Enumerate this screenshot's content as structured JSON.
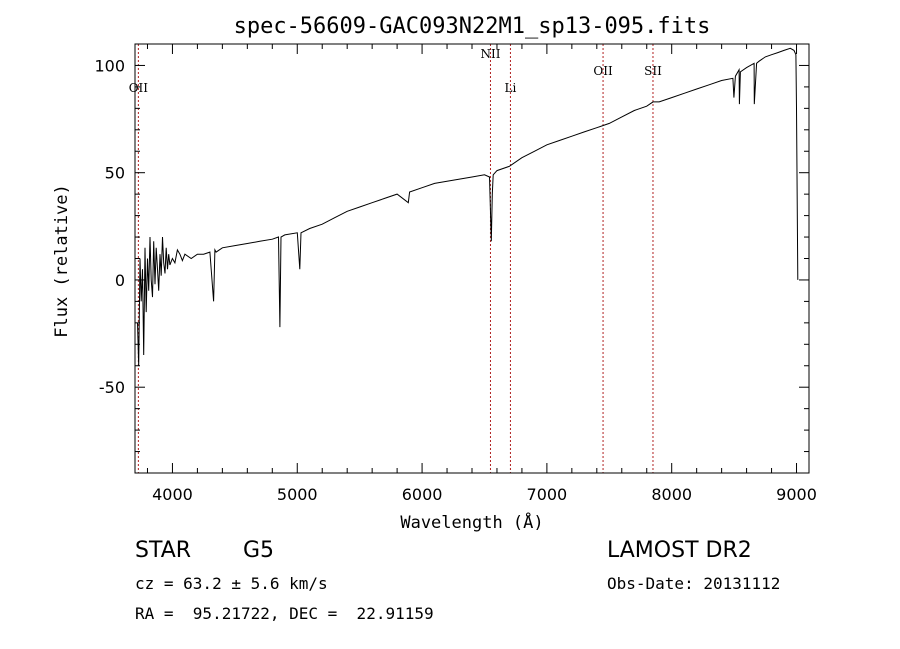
{
  "chart_data": {
    "type": "line",
    "title": "spec-56609-GAC093N22M1_sp13-095.fits",
    "xlabel": "Wavelength (Å)",
    "ylabel": "Flux (relative)",
    "xlim": [
      3700,
      9100
    ],
    "ylim": [
      -90,
      110
    ],
    "xticks": [
      4000,
      5000,
      6000,
      7000,
      8000,
      9000
    ],
    "yticks": [
      -50,
      0,
      50,
      100
    ],
    "grid": false,
    "line_color": "#000000",
    "marker_color": "#b22222",
    "line_markers": [
      {
        "label": "OII",
        "x": 3727
      },
      {
        "label": "NII",
        "x": 6548
      },
      {
        "label": "Li",
        "x": 6708
      },
      {
        "label": "OII",
        "x": 7450
      },
      {
        "label": "SII",
        "x": 7850
      }
    ],
    "series": [
      {
        "x": [
          3720,
          3730,
          3740,
          3750,
          3760,
          3770,
          3780,
          3790,
          3800,
          3810,
          3820,
          3830,
          3840,
          3850,
          3860,
          3870,
          3880,
          3890,
          3900,
          3910,
          3920,
          3930,
          3940,
          3950,
          3960,
          3970,
          3980,
          4000,
          4020,
          4040,
          4060,
          4080,
          4100,
          4150,
          4200,
          4250,
          4300,
          4330,
          4340,
          4350,
          4400,
          4500,
          4600,
          4700,
          4800,
          4850,
          4861,
          4870,
          4900,
          5000,
          5020,
          5030,
          5100,
          5200,
          5300,
          5400,
          5500,
          5600,
          5700,
          5800,
          5890,
          5900,
          6000,
          6100,
          6200,
          6300,
          6400,
          6500,
          6540,
          6555,
          6563,
          6570,
          6600,
          6700,
          6800,
          6900,
          7000,
          7100,
          7200,
          7300,
          7400,
          7500,
          7600,
          7700,
          7800,
          7850,
          7900,
          8000,
          8100,
          8200,
          8300,
          8400,
          8490,
          8498,
          8510,
          8540,
          8542,
          8550,
          8600,
          8660,
          8662,
          8680,
          8700,
          8750,
          8800,
          8850,
          8900,
          8950,
          8980,
          8995,
          9000,
          9010
        ],
        "y": [
          -20,
          -40,
          10,
          -10,
          5,
          -35,
          15,
          -15,
          10,
          -5,
          20,
          0,
          -8,
          18,
          -2,
          15,
          5,
          -5,
          12,
          2,
          20,
          8,
          3,
          15,
          5,
          12,
          7,
          10,
          8,
          14,
          12,
          9,
          12,
          10,
          12,
          12,
          13,
          -10,
          14,
          13,
          15,
          16,
          17,
          18,
          19,
          20,
          -22,
          20,
          21,
          22,
          5,
          22,
          24,
          26,
          29,
          32,
          34,
          36,
          38,
          40,
          36,
          41,
          43,
          45,
          46,
          47,
          48,
          49,
          48,
          18,
          40,
          49,
          51,
          53,
          57,
          60,
          63,
          65,
          67,
          69,
          71,
          73,
          76,
          79,
          81,
          83,
          83,
          85,
          87,
          89,
          91,
          93,
          94,
          85,
          95,
          98,
          82,
          97,
          99,
          101,
          82,
          101,
          102,
          104,
          105,
          106,
          107,
          108,
          107,
          105,
          80,
          0
        ]
      }
    ]
  },
  "info": {
    "object_class": "STAR",
    "subclass": "G5",
    "survey": "LAMOST DR2",
    "redshift_line": "cz = 63.2 ± 5.6 km/s",
    "obs_date": "Obs-Date: 20131112",
    "coords": "RA =  95.21722, DEC =  22.91159"
  }
}
